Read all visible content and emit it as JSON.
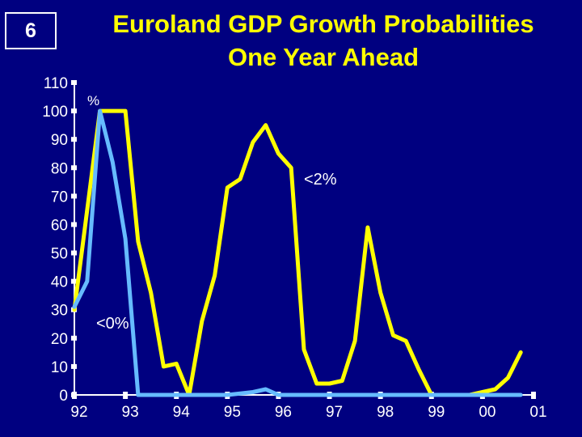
{
  "slide": {
    "number": "6"
  },
  "title": {
    "line1": "Euroland GDP Growth Probabilities",
    "line2": "One Year Ahead"
  },
  "colors": {
    "background": "#000080",
    "axis": "#ffffff",
    "series_below_2": "#ffff00",
    "series_below_0": "#66bbff"
  },
  "chart_data": {
    "type": "line",
    "title": "Euroland GDP Growth Probabilities One Year Ahead",
    "xlabel": "",
    "ylabel": "",
    "ylim": [
      0,
      110
    ],
    "xlim": [
      92,
      101
    ],
    "y_ticks": [
      "0",
      "10",
      "20",
      "30",
      "40",
      "50",
      "60",
      "70",
      "80",
      "90",
      "100",
      "110"
    ],
    "x_ticks": [
      "92",
      "93",
      "94",
      "95",
      "96",
      "97",
      "98",
      "99",
      "00",
      "01"
    ],
    "unit_label": "%",
    "grid": false,
    "legend": "none",
    "series": [
      {
        "name": "<2%",
        "x": [
          92.0,
          92.5,
          93.0,
          93.25,
          93.5,
          93.75,
          94.0,
          94.25,
          94.5,
          94.75,
          95.0,
          95.25,
          95.5,
          95.75,
          96.0,
          96.25,
          96.5,
          96.75,
          97.0,
          97.25,
          97.5,
          97.75,
          98.0,
          98.25,
          98.5,
          98.75,
          99.0,
          99.25,
          99.5,
          99.75,
          100.0,
          100.25,
          100.5,
          100.75
        ],
        "y": [
          30,
          100,
          100,
          54,
          36,
          10,
          11,
          0,
          26,
          42,
          73,
          76,
          89,
          95,
          85,
          80,
          16,
          4,
          4,
          5,
          19,
          59,
          36,
          21,
          19,
          9,
          0,
          0,
          0,
          0,
          1,
          2,
          6,
          15
        ]
      },
      {
        "name": "<0%",
        "x": [
          92.0,
          92.25,
          92.5,
          92.75,
          93.0,
          93.25,
          93.5,
          94.0,
          94.5,
          95.0,
          95.5,
          95.75,
          96.0,
          96.5,
          97.0,
          98.0,
          99.0,
          100.0,
          100.75
        ],
        "y": [
          31,
          40,
          100,
          82,
          55,
          0,
          0,
          0,
          0,
          0,
          1,
          2,
          0,
          0,
          0,
          0,
          0,
          0,
          0
        ]
      }
    ],
    "annotations": [
      {
        "text": "<2%",
        "series": "<2%"
      },
      {
        "text": "<0%",
        "series": "<0%"
      }
    ]
  }
}
